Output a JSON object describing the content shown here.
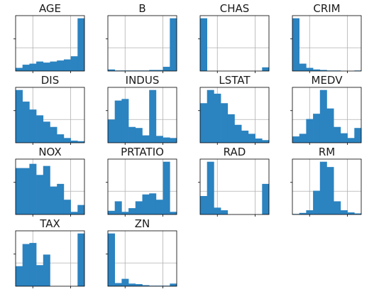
{
  "chart_data": [
    {
      "type": "bar",
      "title": "AGE",
      "values": [
        0.06,
        0.12,
        0.14,
        0.18,
        0.16,
        0.18,
        0.2,
        0.22,
        0.28,
        1.0
      ],
      "xlim": [
        0,
        10
      ],
      "ylim": [
        0,
        1.05
      ]
    },
    {
      "type": "bar",
      "title": "B",
      "values": [
        0.03,
        0.01,
        0.01,
        0.01,
        0.01,
        0.01,
        0.02,
        0.02,
        0.08,
        1.0
      ],
      "xlim": [
        0,
        10
      ],
      "ylim": [
        0,
        1.05
      ]
    },
    {
      "type": "bar",
      "title": "CHAS",
      "values": [
        1.0,
        0,
        0,
        0,
        0,
        0,
        0,
        0,
        0,
        0.07
      ],
      "xlim": [
        0,
        10
      ],
      "ylim": [
        0,
        1.05
      ]
    },
    {
      "type": "bar",
      "title": "CRIM",
      "values": [
        1.0,
        0.14,
        0.06,
        0.03,
        0.02,
        0.01,
        0.01,
        0.0,
        0.0,
        0.01
      ],
      "xlim": [
        0,
        10
      ],
      "ylim": [
        0,
        1.05
      ]
    },
    {
      "type": "bar",
      "title": "DIS",
      "values": [
        1.0,
        0.78,
        0.63,
        0.52,
        0.4,
        0.3,
        0.16,
        0.09,
        0.04,
        0.03
      ],
      "xlim": [
        0,
        10
      ],
      "ylim": [
        0,
        1.05
      ]
    },
    {
      "type": "bar",
      "title": "INDUS",
      "values": [
        0.44,
        0.8,
        0.83,
        0.3,
        0.28,
        0.14,
        1.0,
        0.13,
        0.1,
        0.09
      ],
      "xlim": [
        0,
        10
      ],
      "ylim": [
        0,
        1.05
      ]
    },
    {
      "type": "bar",
      "title": "LSTAT",
      "values": [
        0.75,
        1.0,
        0.93,
        0.75,
        0.54,
        0.34,
        0.23,
        0.17,
        0.08,
        0.05
      ],
      "xlim": [
        0,
        10
      ],
      "ylim": [
        0,
        1.05
      ]
    },
    {
      "type": "bar",
      "title": "MEDV",
      "values": [
        0.12,
        0.17,
        0.45,
        0.55,
        1.0,
        0.65,
        0.3,
        0.18,
        0.09,
        0.28
      ],
      "xlim": [
        0,
        10
      ],
      "ylim": [
        0,
        1.05
      ]
    },
    {
      "type": "bar",
      "title": "NOX",
      "values": [
        0.88,
        0.88,
        0.96,
        0.75,
        0.92,
        0.53,
        0.58,
        0.28,
        0.05,
        0.18
      ],
      "xlim": [
        0,
        10
      ],
      "ylim": [
        0,
        1.05
      ]
    },
    {
      "type": "bar",
      "title": "PRTATIO",
      "values": [
        0.07,
        0.25,
        0.05,
        0.12,
        0.25,
        0.38,
        0.4,
        0.28,
        1.0,
        0.05
      ],
      "xlim": [
        0,
        10
      ],
      "ylim": [
        0,
        1.05
      ]
    },
    {
      "type": "bar",
      "title": "RAD",
      "values": [
        0.35,
        1.0,
        0.13,
        0.08,
        0,
        0,
        0,
        0,
        0,
        0.58
      ],
      "xlim": [
        0,
        10
      ],
      "ylim": [
        0,
        1.05
      ]
    },
    {
      "type": "bar",
      "title": "RM",
      "values": [
        0.01,
        0.03,
        0.08,
        0.45,
        1.0,
        0.9,
        0.25,
        0.08,
        0.04,
        0.02
      ],
      "xlim": [
        0,
        10
      ],
      "ylim": [
        0,
        1.05
      ]
    },
    {
      "type": "bar",
      "title": "TAX",
      "values": [
        0.38,
        0.8,
        0.82,
        0.4,
        0.6,
        0,
        0,
        0,
        0,
        1.0
      ],
      "xlim": [
        0,
        10
      ],
      "ylim": [
        0,
        1.05
      ]
    },
    {
      "type": "bar",
      "title": "ZN",
      "values": [
        1.0,
        0.06,
        0.14,
        0.05,
        0.04,
        0.02,
        0.01,
        0.01,
        0.01,
        0.05
      ],
      "xlim": [
        0,
        10
      ],
      "ylim": [
        0,
        1.05
      ]
    }
  ],
  "colors": {
    "bar": "#2b83c0",
    "grid": "#b0b0b0",
    "frame": "#000000"
  },
  "grid": true
}
